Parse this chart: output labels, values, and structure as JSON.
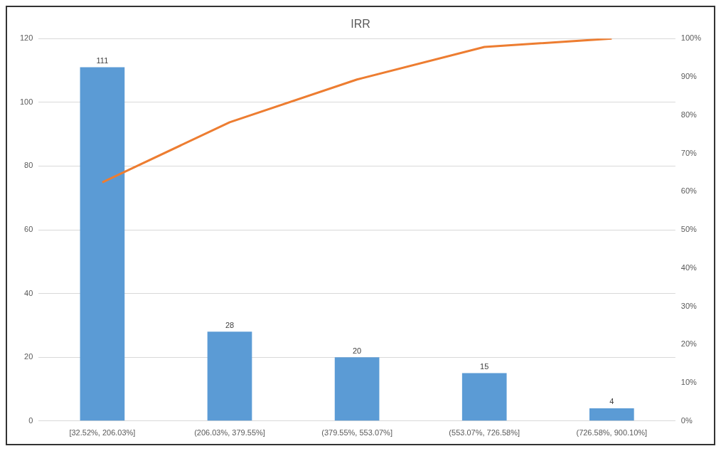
{
  "chart_data": {
    "type": "bar",
    "title": "IRR",
    "categories": [
      "[32.52%, 206.03%]",
      "(206.03%, 379.55%]",
      "(379.55%, 553.07%]",
      "(553.07%, 726.58%]",
      "(726.58%, 900.10%]"
    ],
    "series": [
      {
        "color": "#5b9bd5",
        "values": [
          111,
          28,
          20,
          15,
          4
        ],
        "value_labels": [
          "111",
          "28",
          "20",
          "15",
          "4"
        ]
      },
      {
        "type": "line",
        "axis": "y2",
        "color": "#ed7d31",
        "values": [
          62.4,
          78.1,
          89.3,
          97.8,
          100
        ],
        "marker": "none"
      }
    ],
    "ylim": [
      0,
      120
    ],
    "yticks": [
      0,
      20,
      40,
      60,
      80,
      100,
      120
    ],
    "y2lim": [
      0,
      100
    ],
    "y2ticks": [
      {
        "value": 0,
        "label": "0%"
      },
      {
        "value": 10,
        "label": "10%"
      },
      {
        "value": 20,
        "label": "20%"
      },
      {
        "value": 30,
        "label": "30%"
      },
      {
        "value": 40,
        "label": "40%"
      },
      {
        "value": 50,
        "label": "50%"
      },
      {
        "value": 60,
        "label": "60%"
      },
      {
        "value": 70,
        "label": "70%"
      },
      {
        "value": 80,
        "label": "80%"
      },
      {
        "value": 90,
        "label": "90%"
      },
      {
        "value": 100,
        "label": "100%"
      }
    ],
    "grid": "y",
    "legend": false
  }
}
